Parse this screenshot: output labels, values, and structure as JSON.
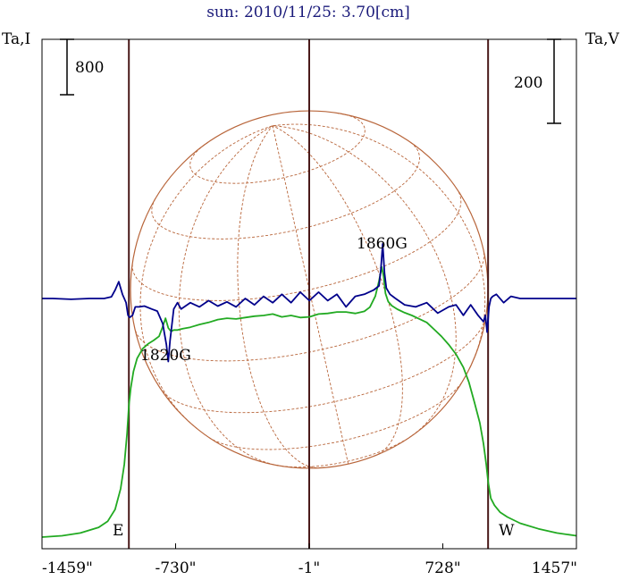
{
  "chart_data": {
    "type": "line",
    "title": "sun: 2010/11/25: 3.70[cm]",
    "left_axis_label": "Ta,I",
    "right_axis_label": "Ta,V",
    "left_scale_label": "800",
    "right_scale_label": "200",
    "x_ticks": [
      "-1459\"",
      "-730\"",
      "-1\"",
      "728\"",
      "1457\""
    ],
    "x_tick_values": [
      -1459,
      -730,
      -1,
      728,
      1457
    ],
    "xlim": [
      -1459,
      1457
    ],
    "limb_labels": {
      "east": "E",
      "west": "W"
    },
    "annotations": [
      {
        "text": "1860G",
        "x": 400
      },
      {
        "text": "1820G",
        "x": -770
      }
    ],
    "reference_lines_x": [
      -985,
      -1,
      975
    ],
    "solar_disk": {
      "radius_arcsec": 975,
      "center_x": -1
    },
    "colors": {
      "intensity": "#22aa22",
      "polarization": "#00008b",
      "disk": "#b8653a",
      "frame": "#000000",
      "limb_lines": "#4a1a1a"
    },
    "series": [
      {
        "name": "Ta,I",
        "x": [
          -1459,
          -1350,
          -1250,
          -1150,
          -1100,
          -1060,
          -1030,
          -1010,
          -995,
          -985,
          -975,
          -960,
          -940,
          -910,
          -880,
          -850,
          -820,
          -800,
          -785,
          -770,
          -755,
          -740,
          -720,
          -690,
          -650,
          -600,
          -550,
          -500,
          -450,
          -400,
          -350,
          -300,
          -250,
          -200,
          -150,
          -100,
          -50,
          0,
          50,
          100,
          150,
          200,
          250,
          300,
          330,
          360,
          380,
          395,
          405,
          415,
          430,
          450,
          480,
          520,
          560,
          600,
          640,
          680,
          720,
          760,
          800,
          840,
          870,
          900,
          930,
          950,
          965,
          975,
          990,
          1010,
          1040,
          1080,
          1150,
          1250,
          1350,
          1457
        ],
        "y": [
          0,
          20,
          60,
          140,
          230,
          400,
          700,
          1050,
          1500,
          1900,
          2150,
          2390,
          2580,
          2720,
          2790,
          2840,
          2900,
          3040,
          3160,
          3020,
          2970,
          2990,
          2990,
          3010,
          3030,
          3070,
          3100,
          3140,
          3160,
          3150,
          3170,
          3190,
          3200,
          3220,
          3180,
          3200,
          3170,
          3180,
          3220,
          3230,
          3250,
          3250,
          3230,
          3260,
          3320,
          3480,
          3700,
          3900,
          3760,
          3520,
          3400,
          3340,
          3290,
          3240,
          3200,
          3150,
          3100,
          3000,
          2900,
          2780,
          2640,
          2450,
          2240,
          1950,
          1650,
          1350,
          1050,
          800,
          560,
          460,
          360,
          290,
          200,
          120,
          60,
          20
        ]
      },
      {
        "name": "Ta,V",
        "x": [
          -1459,
          -1400,
          -1300,
          -1200,
          -1120,
          -1080,
          -1060,
          -1040,
          -1020,
          -1000,
          -990,
          -980,
          -965,
          -950,
          -930,
          -900,
          -860,
          -830,
          -800,
          -780,
          -770,
          -760,
          -740,
          -720,
          -700,
          -650,
          -600,
          -550,
          -500,
          -450,
          -400,
          -350,
          -300,
          -250,
          -200,
          -150,
          -100,
          -50,
          0,
          50,
          100,
          150,
          200,
          250,
          300,
          350,
          380,
          390,
          400,
          410,
          420,
          440,
          470,
          520,
          580,
          640,
          700,
          760,
          800,
          840,
          880,
          920,
          950,
          960,
          970,
          980,
          990,
          1000,
          1020,
          1060,
          1100,
          1150,
          1200,
          1300,
          1400,
          1457
        ],
        "y": [
          0,
          0,
          -2,
          0,
          0,
          4,
          20,
          40,
          10,
          -10,
          -40,
          -45,
          -40,
          -20,
          -20,
          -18,
          -25,
          -30,
          -60,
          -110,
          -150,
          -100,
          -25,
          -10,
          -25,
          -10,
          -20,
          -5,
          -18,
          -8,
          -20,
          0,
          -15,
          5,
          -10,
          10,
          -10,
          15,
          -5,
          15,
          -5,
          10,
          -20,
          5,
          10,
          20,
          30,
          70,
          130,
          60,
          25,
          10,
          0,
          -15,
          -20,
          -10,
          -35,
          -20,
          -15,
          -40,
          -15,
          -40,
          -55,
          -40,
          -80,
          -20,
          0,
          5,
          10,
          -10,
          5,
          0,
          0,
          0,
          0,
          0
        ]
      }
    ]
  }
}
